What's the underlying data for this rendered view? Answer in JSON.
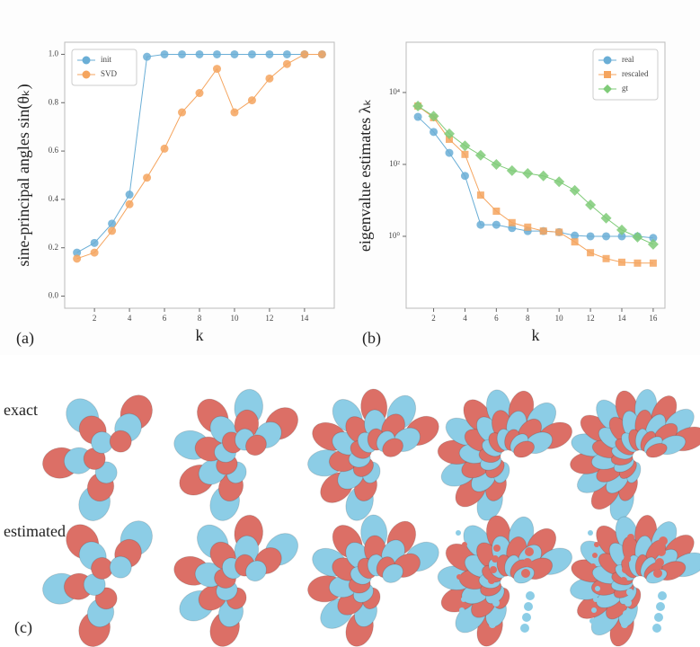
{
  "chart_data": [
    {
      "type": "line",
      "panel_label": "(a)",
      "xlabel": "k",
      "ylabel": "sine-principal angles  sin(θₖ)",
      "x": [
        1,
        2,
        3,
        4,
        5,
        6,
        7,
        8,
        9,
        10,
        11,
        12,
        13,
        14,
        15
      ],
      "series": [
        {
          "name": "init",
          "color": "#6aaed6",
          "marker": "circle",
          "values": [
            0.18,
            0.22,
            0.3,
            0.42,
            0.99,
            1.0,
            1.0,
            1.0,
            1.0,
            1.0,
            1.0,
            1.0,
            1.0,
            1.0,
            1.0
          ]
        },
        {
          "name": "SVD",
          "color": "#f5a55f",
          "marker": "circle",
          "values": [
            0.155,
            0.18,
            0.27,
            0.38,
            0.49,
            0.61,
            0.76,
            0.84,
            0.94,
            0.76,
            0.81,
            0.9,
            0.96,
            1.0,
            1.0
          ]
        }
      ],
      "xlim": [
        0.3,
        15.7
      ],
      "xticks": [
        2,
        4,
        6,
        8,
        10,
        12,
        14
      ],
      "ylim": [
        -0.05,
        1.05
      ],
      "yticks": [
        {
          "value": 0,
          "label": "0.0"
        },
        0.2,
        0.4,
        0.6,
        0.8,
        {
          "value": 1,
          "label": "1.0"
        }
      ],
      "legend": "upper left"
    },
    {
      "type": "line",
      "panel_label": "(b)",
      "xlabel": "k",
      "ylabel": "eigenvalue estimates λₖ",
      "yscale": "log",
      "x": [
        1,
        2,
        3,
        4,
        5,
        6,
        7,
        8,
        9,
        10,
        11,
        12,
        13,
        14,
        15,
        16
      ],
      "series": [
        {
          "name": "real",
          "color": "#6aaed6",
          "marker": "circle",
          "values": [
            2100,
            800,
            210,
            48,
            2.1,
            2.1,
            1.7,
            1.4,
            1.4,
            1.3,
            1.05,
            1.0,
            1.0,
            1.0,
            1.0,
            0.9
          ]
        },
        {
          "name": "rescaled",
          "color": "#f5a55f",
          "marker": "square",
          "values": [
            4200,
            2000,
            500,
            190,
            14,
            5,
            2.4,
            1.8,
            1.4,
            1.3,
            0.7,
            0.35,
            0.24,
            0.19,
            0.18,
            0.18
          ]
        },
        {
          "name": "gt",
          "color": "#7fcb78",
          "marker": "diamond",
          "values": [
            4200,
            2200,
            710,
            330,
            180,
            100,
            67,
            56,
            48,
            33,
            19,
            7.5,
            3.2,
            1.5,
            0.95,
            0.6
          ]
        }
      ],
      "xlim": [
        0.25,
        16.75
      ],
      "xticks": [
        2,
        4,
        6,
        8,
        10,
        12,
        14,
        16
      ],
      "ylim": [
        0.01,
        250000
      ],
      "yticks": [
        {
          "value": 1,
          "label": "10⁰"
        },
        {
          "value": 100,
          "label": "10²"
        },
        {
          "value": 10000,
          "label": "10⁴"
        }
      ],
      "legend": "upper right"
    }
  ],
  "figure_c": {
    "label": "(c)",
    "rows": [
      "exact",
      "estimated"
    ]
  }
}
